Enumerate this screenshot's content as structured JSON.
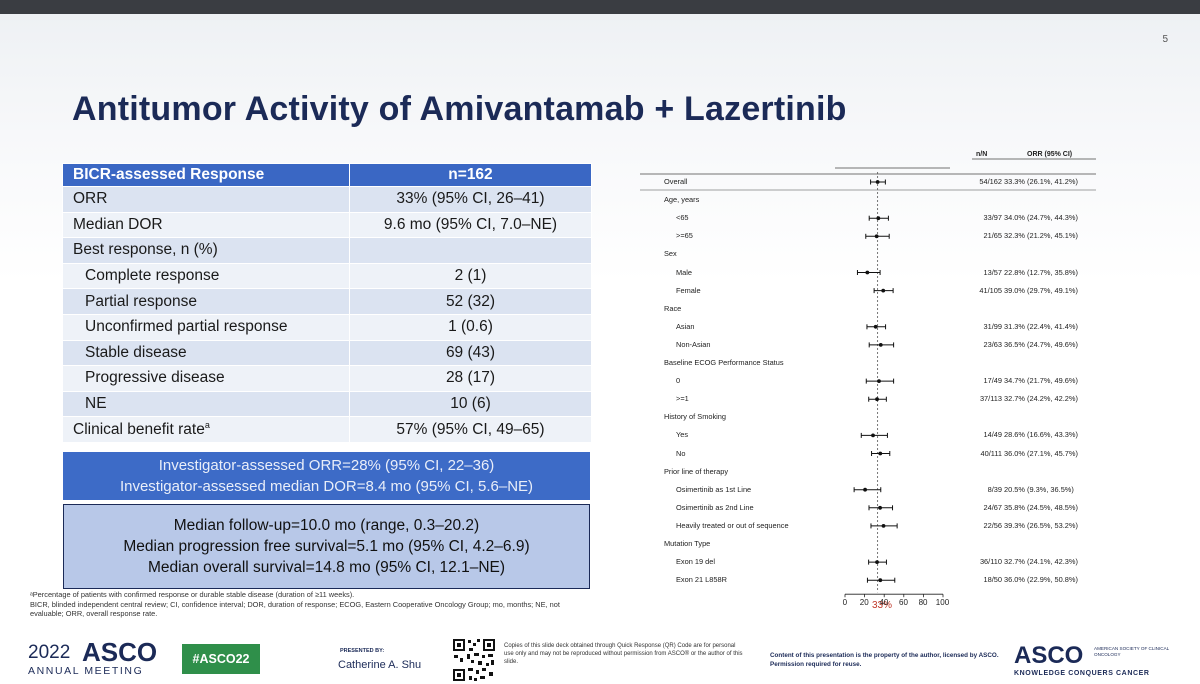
{
  "slide": {
    "page_number": "5",
    "title": "Antitumor Activity of Amivantamab + Lazertinib"
  },
  "response_table": {
    "header": [
      "BICR-assessed Response",
      "n=162"
    ],
    "rows": [
      {
        "label": "ORR",
        "value": "33% (95% CI, 26–41)"
      },
      {
        "label": "Median DOR",
        "value": "9.6 mo (95% CI, 7.0–NE)"
      },
      {
        "label": "Best response, n (%)",
        "value": ""
      },
      {
        "label": "Complete response",
        "value": "2 (1)"
      },
      {
        "label": "Partial response",
        "value": "52 (32)"
      },
      {
        "label": "Unconfirmed partial response",
        "value": "1 (0.6)"
      },
      {
        "label": "Stable disease",
        "value": "69 (43)"
      },
      {
        "label": "Progressive disease",
        "value": "28 (17)"
      },
      {
        "label": "NE",
        "value": "10 (6)"
      },
      {
        "label": "Clinical benefit rate",
        "label_sup": "a",
        "value": "57% (95% CI, 49–65)"
      }
    ]
  },
  "investigator_box": [
    "Investigator-assessed ORR=28% (95% CI, 22–36)",
    "Investigator-assessed median DOR=8.4 mo (95% CI, 5.6–NE)"
  ],
  "followup_box": [
    "Median follow-up=10.0 mo (range, 0.3–20.2)",
    "Median progression free survival=5.1 mo (95% CI, 4.2–6.9)",
    "Median overall survival=14.8 mo (95% CI, 12.1–NE)"
  ],
  "footnotes": [
    "ᵃPercentage of patients with confirmed response or durable stable disease (duration of ≥11 weeks).",
    "BICR, blinded independent central review; CI, confidence interval; DOR, duration of response; ECOG, Eastern Cooperative Oncology Group; mo, months; NE, not evaluable; ORR, overall response rate."
  ],
  "forest_plot": {
    "col_headers": [
      "n/N",
      "ORR (95% CI)"
    ],
    "reference_label": "33%",
    "x_ticks": [
      "0",
      "20",
      "40",
      "60",
      "80",
      "100"
    ]
  },
  "chart_data": {
    "type": "forest",
    "xlim": [
      0,
      100
    ],
    "reference_line": 33.3,
    "rows": [
      {
        "label": "Overall",
        "group": false,
        "nN": "54/162",
        "ci_text": "33.3% (26.1%, 41.2%)",
        "est": 33.3,
        "lo": 26.1,
        "hi": 41.2
      },
      {
        "label": "Age, years",
        "group": true
      },
      {
        "label": "<65",
        "group": false,
        "nN": "33/97",
        "ci_text": "34.0% (24.7%, 44.3%)",
        "est": 34.0,
        "lo": 24.7,
        "hi": 44.3
      },
      {
        "label": ">=65",
        "group": false,
        "nN": "21/65",
        "ci_text": "32.3% (21.2%, 45.1%)",
        "est": 32.3,
        "lo": 21.2,
        "hi": 45.1
      },
      {
        "label": "Sex",
        "group": true
      },
      {
        "label": "Male",
        "group": false,
        "nN": "13/57",
        "ci_text": "22.8% (12.7%, 35.8%)",
        "est": 22.8,
        "lo": 12.7,
        "hi": 35.8
      },
      {
        "label": "Female",
        "group": false,
        "nN": "41/105",
        "ci_text": "39.0% (29.7%, 49.1%)",
        "est": 39.0,
        "lo": 29.7,
        "hi": 49.1
      },
      {
        "label": "Race",
        "group": true
      },
      {
        "label": "Asian",
        "group": false,
        "nN": "31/99",
        "ci_text": "31.3% (22.4%, 41.4%)",
        "est": 31.3,
        "lo": 22.4,
        "hi": 41.4
      },
      {
        "label": "Non-Asian",
        "group": false,
        "nN": "23/63",
        "ci_text": "36.5% (24.7%, 49.6%)",
        "est": 36.5,
        "lo": 24.7,
        "hi": 49.6
      },
      {
        "label": "Baseline ECOG Performance Status",
        "group": true
      },
      {
        "label": "0",
        "group": false,
        "nN": "17/49",
        "ci_text": "34.7% (21.7%, 49.6%)",
        "est": 34.7,
        "lo": 21.7,
        "hi": 49.6
      },
      {
        "label": ">=1",
        "group": false,
        "nN": "37/113",
        "ci_text": "32.7% (24.2%, 42.2%)",
        "est": 32.7,
        "lo": 24.2,
        "hi": 42.2
      },
      {
        "label": "History of Smoking",
        "group": true
      },
      {
        "label": "Yes",
        "group": false,
        "nN": "14/49",
        "ci_text": "28.6% (16.6%, 43.3%)",
        "est": 28.6,
        "lo": 16.6,
        "hi": 43.3
      },
      {
        "label": "No",
        "group": false,
        "nN": "40/111",
        "ci_text": "36.0% (27.1%, 45.7%)",
        "est": 36.0,
        "lo": 27.1,
        "hi": 45.7
      },
      {
        "label": "Prior line of therapy",
        "group": true
      },
      {
        "label": "Osimertinib as 1st Line",
        "group": false,
        "nN": "8/39",
        "ci_text": "20.5% (9.3%, 36.5%)",
        "est": 20.5,
        "lo": 9.3,
        "hi": 36.5
      },
      {
        "label": "Osimertinib as 2nd Line",
        "group": false,
        "nN": "24/67",
        "ci_text": "35.8% (24.5%, 48.5%)",
        "est": 35.8,
        "lo": 24.5,
        "hi": 48.5
      },
      {
        "label": "Heavily treated or out of sequence",
        "group": false,
        "nN": "22/56",
        "ci_text": "39.3% (26.5%, 53.2%)",
        "est": 39.3,
        "lo": 26.5,
        "hi": 53.2
      },
      {
        "label": "Mutation Type",
        "group": true
      },
      {
        "label": "Exon 19 del",
        "group": false,
        "nN": "36/110",
        "ci_text": "32.7% (24.1%, 42.3%)",
        "est": 32.7,
        "lo": 24.1,
        "hi": 42.3
      },
      {
        "label": "Exon 21 L858R",
        "group": false,
        "nN": "18/50",
        "ci_text": "36.0% (22.9%, 50.8%)",
        "est": 36.0,
        "lo": 22.9,
        "hi": 50.8
      }
    ]
  },
  "footer": {
    "year": "2022",
    "asco": "ASCO",
    "meeting": "ANNUAL MEETING",
    "hashtag": "#ASCO22",
    "presented_by": "PRESENTED BY:",
    "presenter": "Catherine A. Shu",
    "qr_note": "Copies of this slide deck obtained through Quick Response (QR) Code are for personal use only and may not be reproduced without permission from ASCO® or the author of this slide.",
    "copyright": "Content of this presentation is the property of the author, licensed by ASCO. Permission required for reuse.",
    "asco_right": "ASCO",
    "asco_society": "AMERICAN SOCIETY OF CLINICAL ONCOLOGY",
    "asco_tagline": "KNOWLEDGE CONQUERS CANCER"
  },
  "colors": {
    "title": "#1b2a57",
    "table_header": "#3a67c4",
    "investigator_box": "#3d6bc7",
    "followup_box": "#b8c8e8",
    "hashtag": "#2f8f4a",
    "reference_label": "#c0392b"
  }
}
